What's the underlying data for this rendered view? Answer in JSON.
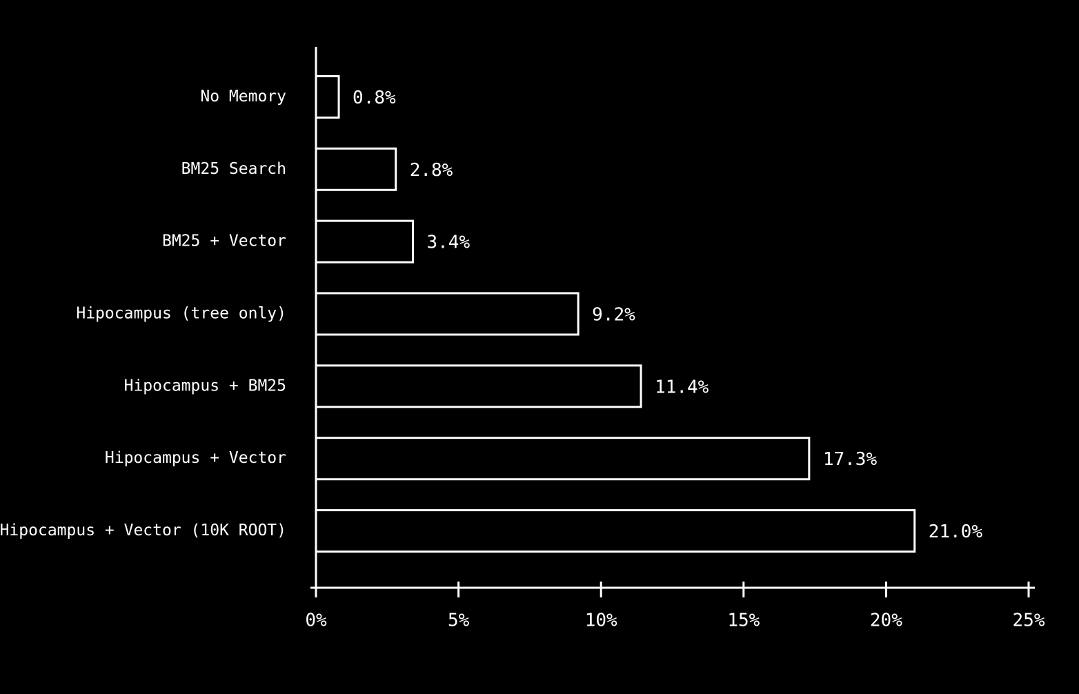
{
  "chart_data": {
    "type": "bar",
    "orientation": "horizontal",
    "categories": [
      "No Memory",
      "BM25 Search",
      "BM25 + Vector",
      "Hipocampus (tree only)",
      "Hipocampus + BM25",
      "Hipocampus + Vector",
      "Hipocampus + Vector (10K ROOT)"
    ],
    "values": [
      0.8,
      2.8,
      3.4,
      9.2,
      11.4,
      17.3,
      21.0
    ],
    "value_labels": [
      "0.8%",
      "2.8%",
      "3.4%",
      "9.2%",
      "11.4%",
      "17.3%",
      "21.0%"
    ],
    "color": "#ffffff",
    "xlim": [
      0,
      25
    ],
    "xticks": [
      {
        "value": 0,
        "label": "0%"
      },
      {
        "value": 5,
        "label": "5%"
      },
      {
        "value": 10,
        "label": "10%"
      },
      {
        "value": 15,
        "label": "15%"
      },
      {
        "value": 20,
        "label": "20%"
      },
      {
        "value": 25,
        "label": "25%"
      }
    ]
  }
}
